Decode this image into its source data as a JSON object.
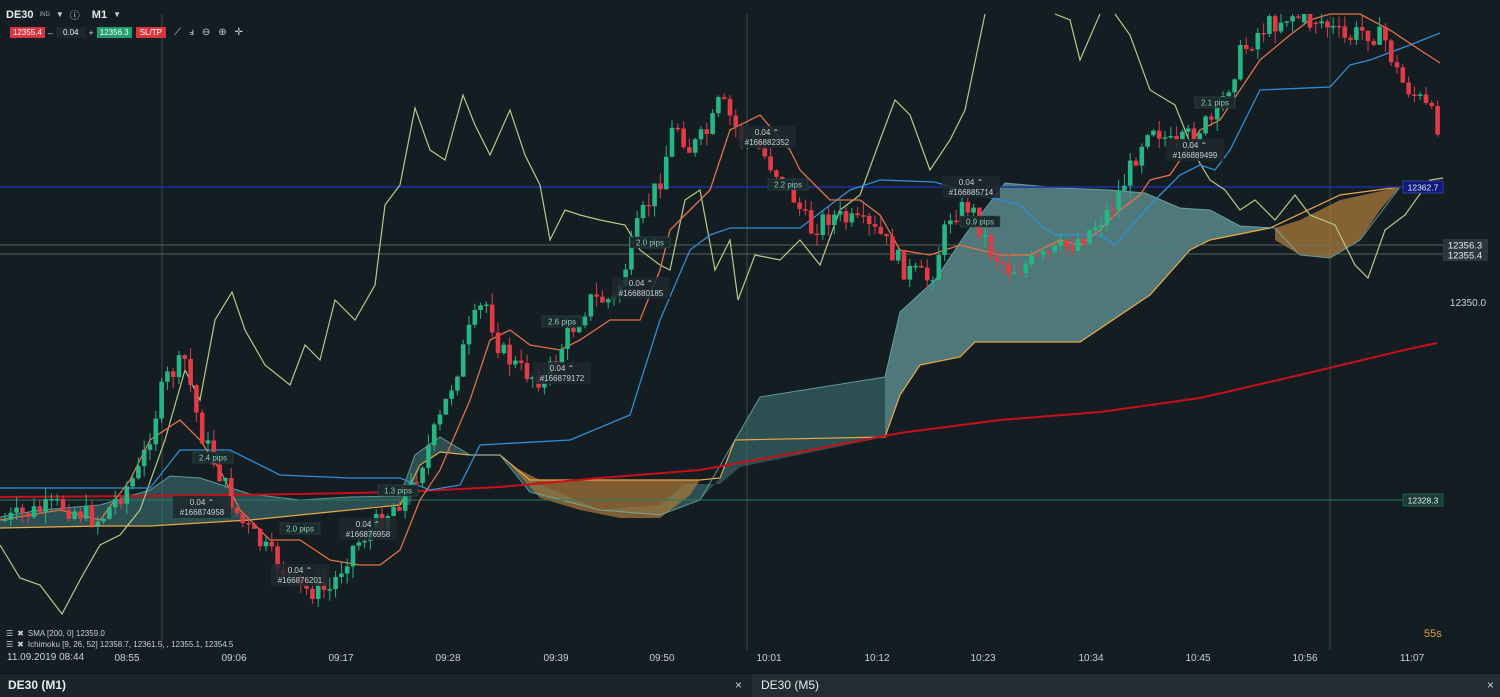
{
  "toolbar": {
    "symbol": "DE30",
    "symbol_tag": "IND",
    "timeframe": "M1",
    "sell_price": "12355.4",
    "volume": "0.04",
    "buy_price": "12356.3",
    "sltp": "SL/TP",
    "minus": "–",
    "plus": "+"
  },
  "axis": {
    "y_labels": [
      "12356.3",
      "12355.4",
      "12350.0"
    ],
    "time_labels": [
      "08:55",
      "09:06",
      "09:17",
      "09:28",
      "09:39",
      "09:50",
      "10:01",
      "10:12",
      "10:23",
      "10:34",
      "10:45",
      "10:56",
      "11:07"
    ],
    "start_date": "11.09.2019 08:44"
  },
  "levels": {
    "blue_line": "12362.7",
    "green_line": "12328.3"
  },
  "indicators": [
    "SMA [200, 0] 12359.0",
    "Ichimoku [9, 26, 52] 12358.7, 12361.5, , 12355.1, 12354.5"
  ],
  "countdown": "55s",
  "trades": [
    {
      "pips": "2.4 pips",
      "vol": "0.04",
      "id": "#166874958"
    },
    {
      "pips": "2.0 pips",
      "vol": "0.04",
      "id": "#166876201"
    },
    {
      "pips": "1.3 pips",
      "vol": "0.04",
      "id": "#166876958"
    },
    {
      "pips": "2.6 pips",
      "vol": "0.04",
      "id": "#166879172"
    },
    {
      "pips": "2.0 pips",
      "vol": "0.04",
      "id": "#166880185"
    },
    {
      "pips": "2.2 pips",
      "vol": "0.04",
      "id": "#166882352"
    },
    {
      "pips": "0.9 pips",
      "vol": "0.04",
      "id": "#166885714"
    },
    {
      "pips": "2.1 pips",
      "vol": "0.04",
      "id": "#166889499"
    }
  ],
  "tabs": [
    {
      "label": "DE30 (M1)"
    },
    {
      "label": "DE30 (M5)"
    }
  ],
  "close_glyph": "×",
  "colors": {
    "bull": "#26b584",
    "bear": "#e03b47",
    "tenkan": "#e0724a",
    "kijun": "#2d8fd6",
    "chikou": "#b6c98a",
    "sma": "#c8101c",
    "cloud_bull": "#7fc3c2",
    "cloud_bear": "#b5803a"
  }
}
